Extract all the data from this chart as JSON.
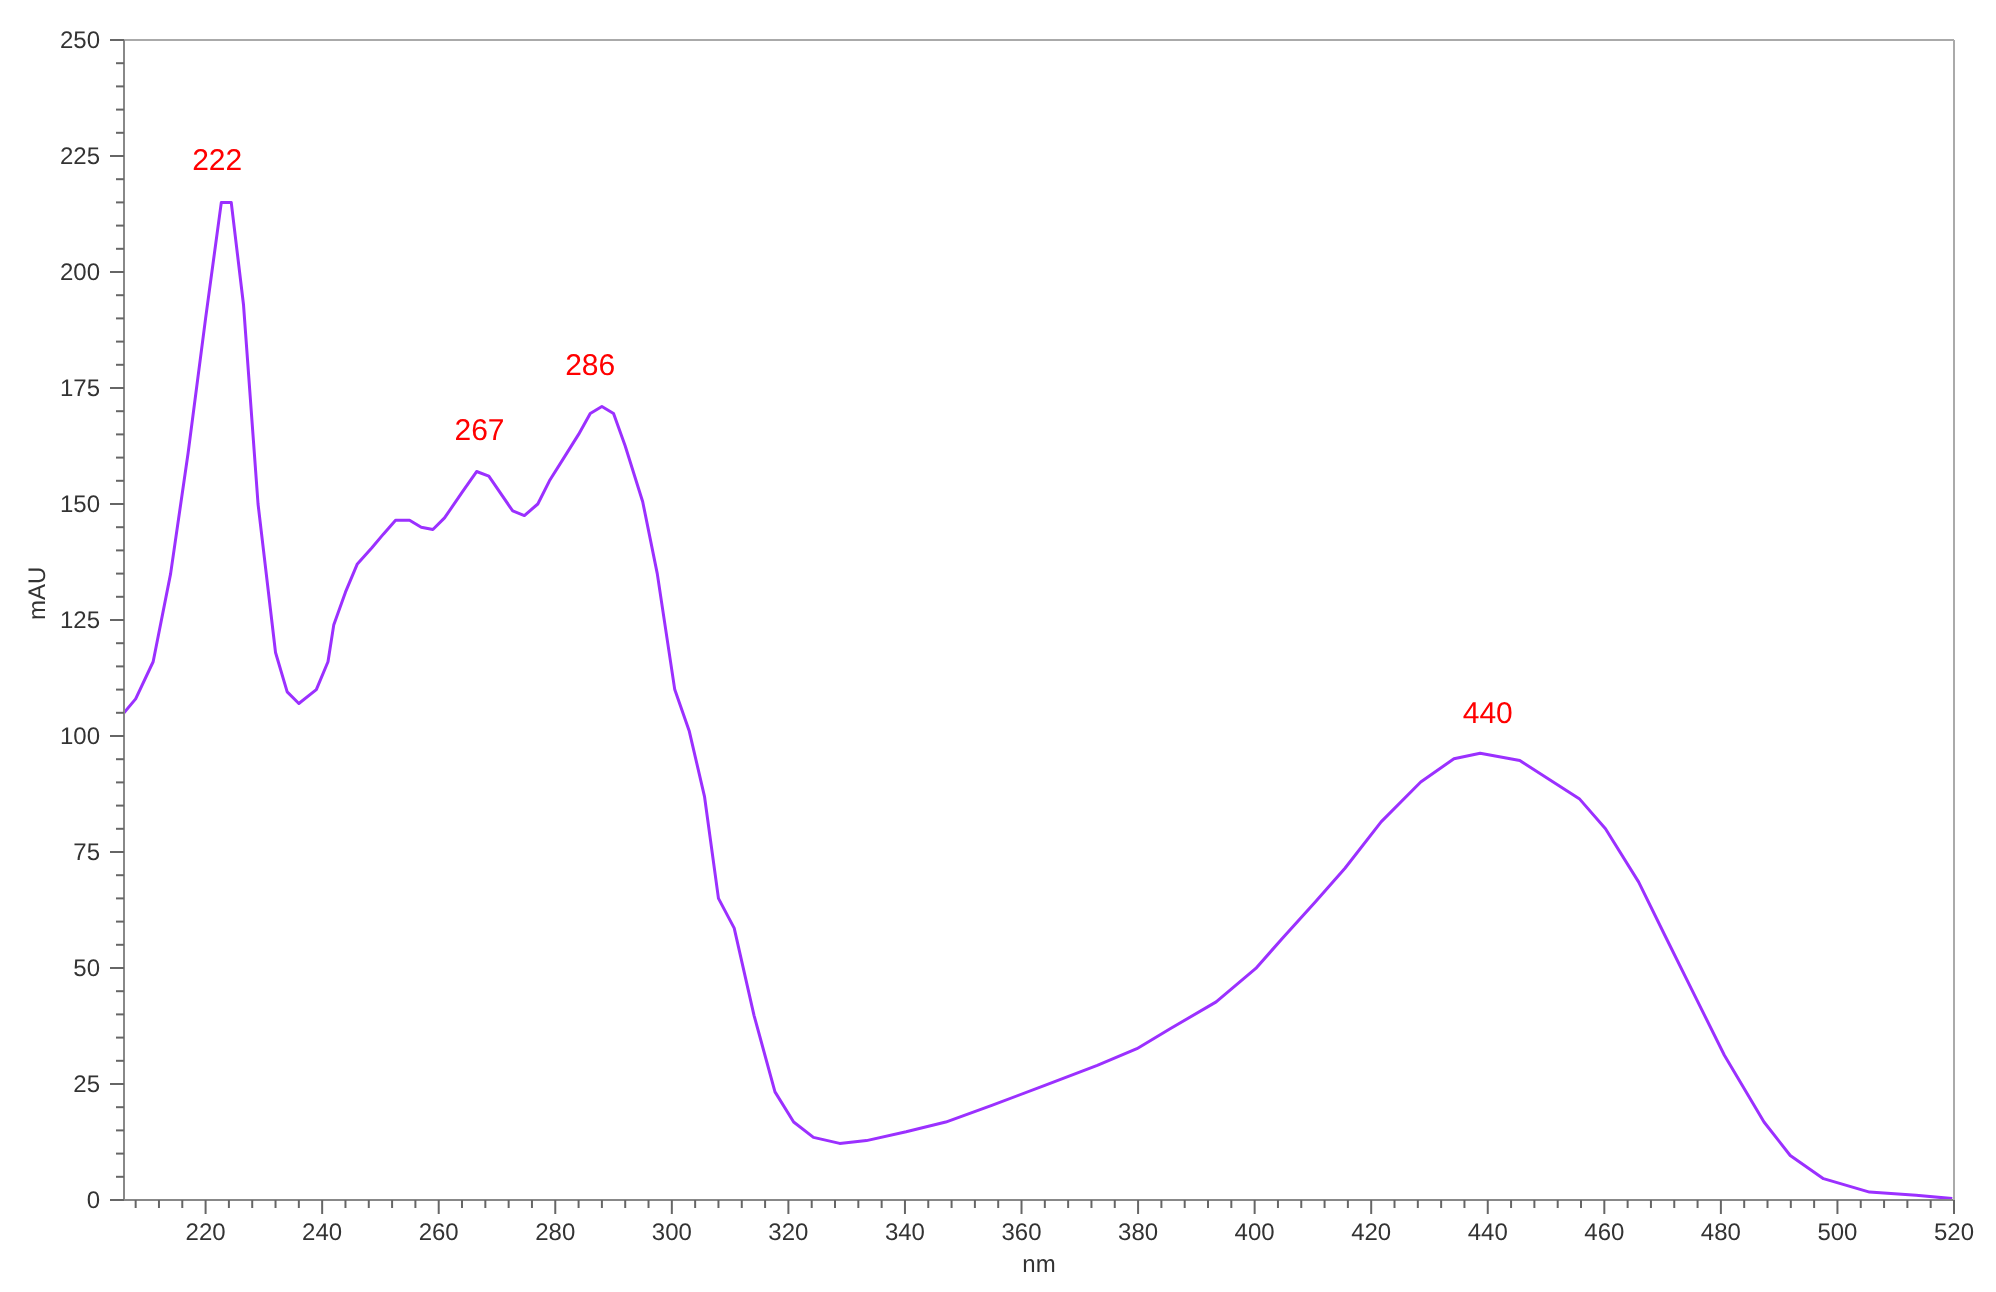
{
  "chart_data": {
    "type": "line",
    "xlabel": "nm",
    "ylabel": "mAU",
    "xlim": [
      206,
      520
    ],
    "ylim": [
      0,
      250
    ],
    "xticks": [
      {
        "value": 208,
        "label": null
      },
      {
        "value": 212,
        "label": null
      },
      {
        "value": 216,
        "label": null
      },
      220,
      {
        "value": 224,
        "label": null
      },
      {
        "value": 228,
        "label": null
      },
      {
        "value": 232,
        "label": null
      },
      {
        "value": 236,
        "label": null
      },
      240,
      {
        "value": 244,
        "label": null
      },
      {
        "value": 248,
        "label": null
      },
      {
        "value": 252,
        "label": null
      },
      {
        "value": 256,
        "label": null
      },
      260,
      {
        "value": 264,
        "label": null
      },
      {
        "value": 268,
        "label": null
      },
      {
        "value": 272,
        "label": null
      },
      {
        "value": 276,
        "label": null
      },
      280,
      {
        "value": 284,
        "label": null
      },
      {
        "value": 288,
        "label": null
      },
      {
        "value": 292,
        "label": null
      },
      {
        "value": 296,
        "label": null
      },
      300,
      {
        "value": 304,
        "label": null
      },
      {
        "value": 308,
        "label": null
      },
      {
        "value": 312,
        "label": null
      },
      {
        "value": 316,
        "label": null
      },
      320,
      {
        "value": 324,
        "label": null
      },
      {
        "value": 328,
        "label": null
      },
      {
        "value": 332,
        "label": null
      },
      {
        "value": 336,
        "label": null
      },
      340,
      {
        "value": 344,
        "label": null
      },
      {
        "value": 348,
        "label": null
      },
      {
        "value": 352,
        "label": null
      },
      {
        "value": 356,
        "label": null
      },
      360,
      {
        "value": 364,
        "label": null
      },
      {
        "value": 368,
        "label": null
      },
      {
        "value": 372,
        "label": null
      },
      {
        "value": 376,
        "label": null
      },
      380,
      {
        "value": 384,
        "label": null
      },
      {
        "value": 388,
        "label": null
      },
      {
        "value": 392,
        "label": null
      },
      {
        "value": 396,
        "label": null
      },
      400,
      {
        "value": 404,
        "label": null
      },
      {
        "value": 408,
        "label": null
      },
      {
        "value": 412,
        "label": null
      },
      {
        "value": 416,
        "label": null
      },
      420,
      {
        "value": 424,
        "label": null
      },
      {
        "value": 428,
        "label": null
      },
      {
        "value": 432,
        "label": null
      },
      {
        "value": 436,
        "label": null
      },
      440,
      {
        "value": 444,
        "label": null
      },
      {
        "value": 448,
        "label": null
      },
      {
        "value": 452,
        "label": null
      },
      {
        "value": 456,
        "label": null
      },
      460,
      {
        "value": 464,
        "label": null
      },
      {
        "value": 468,
        "label": null
      },
      {
        "value": 472,
        "label": null
      },
      {
        "value": 476,
        "label": null
      },
      480,
      {
        "value": 484,
        "label": null
      },
      {
        "value": 488,
        "label": null
      },
      {
        "value": 492,
        "label": null
      },
      {
        "value": 496,
        "label": null
      },
      500,
      {
        "value": 504,
        "label": null
      },
      {
        "value": 508,
        "label": null
      },
      {
        "value": 512,
        "label": null
      },
      {
        "value": 516,
        "label": null
      },
      520
    ],
    "yticks": [
      0,
      {
        "value": 5,
        "label": null
      },
      {
        "value": 10,
        "label": null
      },
      {
        "value": 15,
        "label": null
      },
      {
        "value": 20,
        "label": null
      },
      25,
      {
        "value": 30,
        "label": null
      },
      {
        "value": 35,
        "label": null
      },
      {
        "value": 40,
        "label": null
      },
      {
        "value": 45,
        "label": null
      },
      50,
      {
        "value": 55,
        "label": null
      },
      {
        "value": 60,
        "label": null
      },
      {
        "value": 65,
        "label": null
      },
      {
        "value": 70,
        "label": null
      },
      75,
      {
        "value": 80,
        "label": null
      },
      {
        "value": 85,
        "label": null
      },
      {
        "value": 90,
        "label": null
      },
      {
        "value": 95,
        "label": null
      },
      100,
      {
        "value": 105,
        "label": null
      },
      {
        "value": 110,
        "label": null
      },
      {
        "value": 115,
        "label": null
      },
      {
        "value": 120,
        "label": null
      },
      125,
      {
        "value": 130,
        "label": null
      },
      {
        "value": 135,
        "label": null
      },
      {
        "value": 140,
        "label": null
      },
      {
        "value": 145,
        "label": null
      },
      150,
      {
        "value": 155,
        "label": null
      },
      {
        "value": 160,
        "label": null
      },
      {
        "value": 165,
        "label": null
      },
      {
        "value": 170,
        "label": null
      },
      175,
      {
        "value": 180,
        "label": null
      },
      {
        "value": 185,
        "label": null
      },
      {
        "value": 190,
        "label": null
      },
      {
        "value": 195,
        "label": null
      },
      200,
      {
        "value": 205,
        "label": null
      },
      {
        "value": 210,
        "label": null
      },
      {
        "value": 215,
        "label": null
      },
      {
        "value": 220,
        "label": null
      },
      225,
      {
        "value": 230,
        "label": null
      },
      {
        "value": 235,
        "label": null
      },
      {
        "value": 240,
        "label": null
      },
      {
        "value": 245,
        "label": null
      },
      250
    ],
    "marker": "none",
    "line_style": "solid",
    "series": [
      {
        "color": "#9b30ff",
        "x": [
          206,
          208,
          211,
          214,
          217,
          220,
          222.7,
          224.4,
          226.5,
          229,
          232,
          234,
          236,
          239,
          241,
          242,
          244,
          246,
          248.5,
          250.5,
          252.6,
          255,
          257,
          259,
          261,
          264,
          266.5,
          268.6,
          272.7,
          274.7,
          277,
          279,
          281.5,
          284,
          286,
          288,
          290,
          292,
          295,
          297.5,
          300.5,
          303,
          305.6,
          308,
          310.7,
          314.1,
          317.7,
          320.9,
          324.3,
          328.8,
          333.4,
          340.2,
          347,
          354.9,
          364,
          373,
          379.8,
          385.5,
          393.4,
          400.2,
          404.7,
          410.4,
          415.5,
          421.7,
          428.5,
          434.2,
          438.7,
          445.5,
          455.7,
          460.2,
          465.9,
          470.4,
          474.9,
          480.6,
          487.4,
          491.9,
          497.6,
          505.5,
          513.5,
          519.7
        ],
        "values": [
          105,
          108,
          116,
          135,
          161,
          190,
          215,
          215,
          193,
          150,
          118,
          109.5,
          107,
          110,
          116,
          124,
          131,
          137,
          140.5,
          143.5,
          146.5,
          146.5,
          145,
          144.5,
          147,
          152.5,
          157,
          156,
          148.5,
          147.5,
          150,
          155,
          160,
          165,
          169.5,
          171,
          169.5,
          162.5,
          150.5,
          135,
          110,
          101,
          87,
          65,
          58.6,
          39.8,
          23.3,
          16.8,
          13.5,
          12.2,
          12.8,
          14.7,
          16.8,
          20.4,
          24.7,
          29,
          32.6,
          36.9,
          42.7,
          49.9,
          56.3,
          64.2,
          71.5,
          81.5,
          90.1,
          95.1,
          96.3,
          94.7,
          86.5,
          80,
          68.5,
          57,
          45.6,
          31.2,
          16.8,
          9.6,
          4.6,
          1.7,
          1,
          0.3
        ]
      }
    ],
    "annotations": [
      {
        "text": "222",
        "x": 222,
        "y": 215
      },
      {
        "text": "267",
        "x": 267,
        "y": 157
      },
      {
        "text": "286",
        "x": 286,
        "y": 171
      },
      {
        "text": "440",
        "x": 440,
        "y": 96
      }
    ]
  }
}
